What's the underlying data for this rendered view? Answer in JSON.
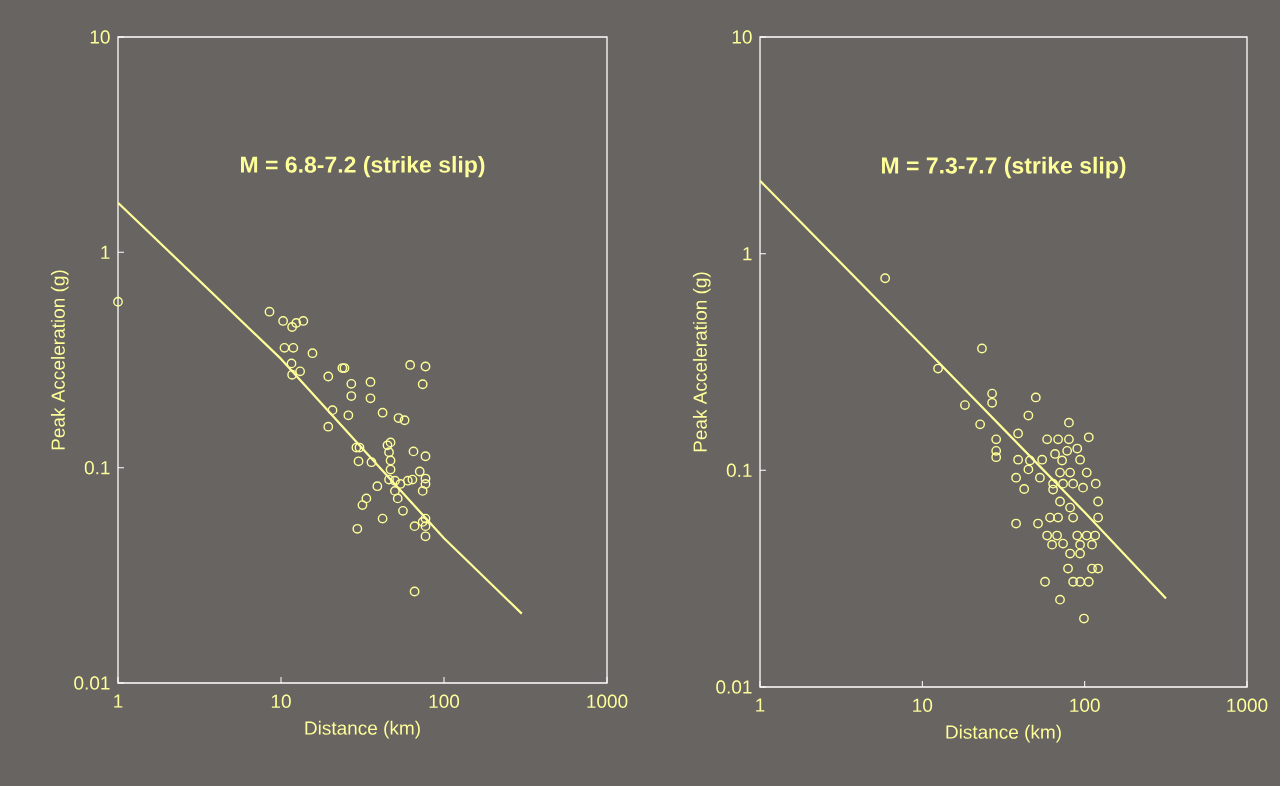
{
  "chart_data": [
    {
      "type": "scatter",
      "title": "M = 6.8-7.2 (strike slip)",
      "xlabel": "Distance (km)",
      "ylabel": "Peak Acceleration (g)",
      "log": "xy",
      "xlim": [
        1,
        1000
      ],
      "ylim": [
        0.01,
        10
      ],
      "xticks": [
        1,
        10,
        100,
        1000
      ],
      "yticks": [
        0.01,
        0.1,
        1,
        10
      ],
      "grid": false,
      "marker": "circle",
      "series": [
        {
          "color": "#ffff99",
          "x": [
            1,
            8.5,
            10.3,
            11.7,
            12.4,
            13.7,
            10.5,
            11.9,
            15.6,
            11.6,
            11.7,
            13.1,
            19.5,
            23.8,
            24.5,
            27,
            35.4,
            27,
            35.4,
            20.7,
            19.5,
            25.9,
            42,
            52.6,
            57.3,
            29,
            30.3,
            45,
            47,
            46,
            47,
            29.9,
            47,
            35.9,
            46,
            39,
            33.4,
            31.6,
            29.4,
            42,
            65,
            77,
            62,
            77,
            74,
            71,
            64,
            60,
            54,
            50,
            52,
            56,
            77,
            77,
            74,
            77,
            74,
            77,
            77,
            66,
            66,
            50
          ],
          "values": [
            0.59,
            0.53,
            0.48,
            0.45,
            0.47,
            0.48,
            0.36,
            0.36,
            0.34,
            0.305,
            0.27,
            0.28,
            0.265,
            0.29,
            0.29,
            0.245,
            0.25,
            0.215,
            0.21,
            0.185,
            0.155,
            0.175,
            0.18,
            0.17,
            0.166,
            0.124,
            0.124,
            0.127,
            0.131,
            0.118,
            0.108,
            0.107,
            0.098,
            0.106,
            0.088,
            0.082,
            0.072,
            0.067,
            0.052,
            0.058,
            0.119,
            0.113,
            0.3,
            0.295,
            0.244,
            0.096,
            0.088,
            0.087,
            0.084,
            0.078,
            0.072,
            0.063,
            0.089,
            0.084,
            0.078,
            0.058,
            0.056,
            0.0535,
            0.048,
            0.0535,
            0.0266,
            0.087
          ]
        },
        {
          "type": "line",
          "marker": "none",
          "color": "#ffff99",
          "x": [
            1,
            10,
            100,
            300
          ],
          "values": [
            1.7,
            0.32,
            0.047,
            0.021
          ]
        }
      ]
    },
    {
      "type": "scatter",
      "title": "M = 7.3-7.7 (strike slip)",
      "xlabel": "Distance (km)",
      "ylabel": "Peak Acceleration (g)",
      "log": "xy",
      "xlim": [
        1,
        1000
      ],
      "ylim": [
        0.01,
        10
      ],
      "xticks": [
        1,
        10,
        100,
        1000
      ],
      "yticks": [
        0.01,
        0.1,
        1,
        10
      ],
      "grid": false,
      "marker": "circle",
      "series": [
        {
          "color": "#ffff99",
          "x": [
            5.9,
            23.3,
            12.5,
            26.9,
            26.9,
            18.3,
            50,
            45,
            22.7,
            80,
            38.9,
            28.5,
            28.5,
            28.5,
            58.7,
            68.6,
            80,
            106,
            90,
            78,
            65.7,
            93.7,
            72.6,
            54.7,
            38.9,
            46,
            45,
            53,
            37.8,
            42.4,
            70.5,
            81.3,
            103,
            63.9,
            73.6,
            84.9,
            97.7,
            117,
            63.9,
            70.5,
            81.3,
            121,
            121,
            61.2,
            68.6,
            84.9,
            51.6,
            37.8,
            58.7,
            67.6,
            63,
            73.6,
            90,
            103,
            116,
            93.7,
            111,
            81.3,
            93.7,
            79,
            111,
            121,
            57,
            84.9,
            93.7,
            106,
            70.5,
            99
          ],
          "values": [
            0.77,
            0.365,
            0.295,
            0.226,
            0.205,
            0.2,
            0.217,
            0.179,
            0.163,
            0.166,
            0.148,
            0.139,
            0.123,
            0.115,
            0.139,
            0.139,
            0.139,
            0.142,
            0.126,
            0.123,
            0.119,
            0.112,
            0.111,
            0.112,
            0.112,
            0.111,
            0.101,
            0.0925,
            0.0925,
            0.082,
            0.0976,
            0.0976,
            0.0976,
            0.0868,
            0.0868,
            0.0868,
            0.0832,
            0.0868,
            0.0815,
            0.0718,
            0.0673,
            0.0718,
            0.0605,
            0.0605,
            0.0605,
            0.0605,
            0.0568,
            0.0568,
            0.05,
            0.05,
            0.0454,
            0.0459,
            0.05,
            0.05,
            0.05,
            0.0454,
            0.0454,
            0.0413,
            0.0413,
            0.0352,
            0.0352,
            0.0352,
            0.0306,
            0.0306,
            0.0306,
            0.0306,
            0.0253,
            0.0207
          ]
        },
        {
          "type": "line",
          "marker": "none",
          "color": "#ffff99",
          "x": [
            1,
            10,
            100,
            317
          ],
          "values": [
            2.17,
            0.376,
            0.064,
            0.0256
          ]
        }
      ]
    }
  ]
}
